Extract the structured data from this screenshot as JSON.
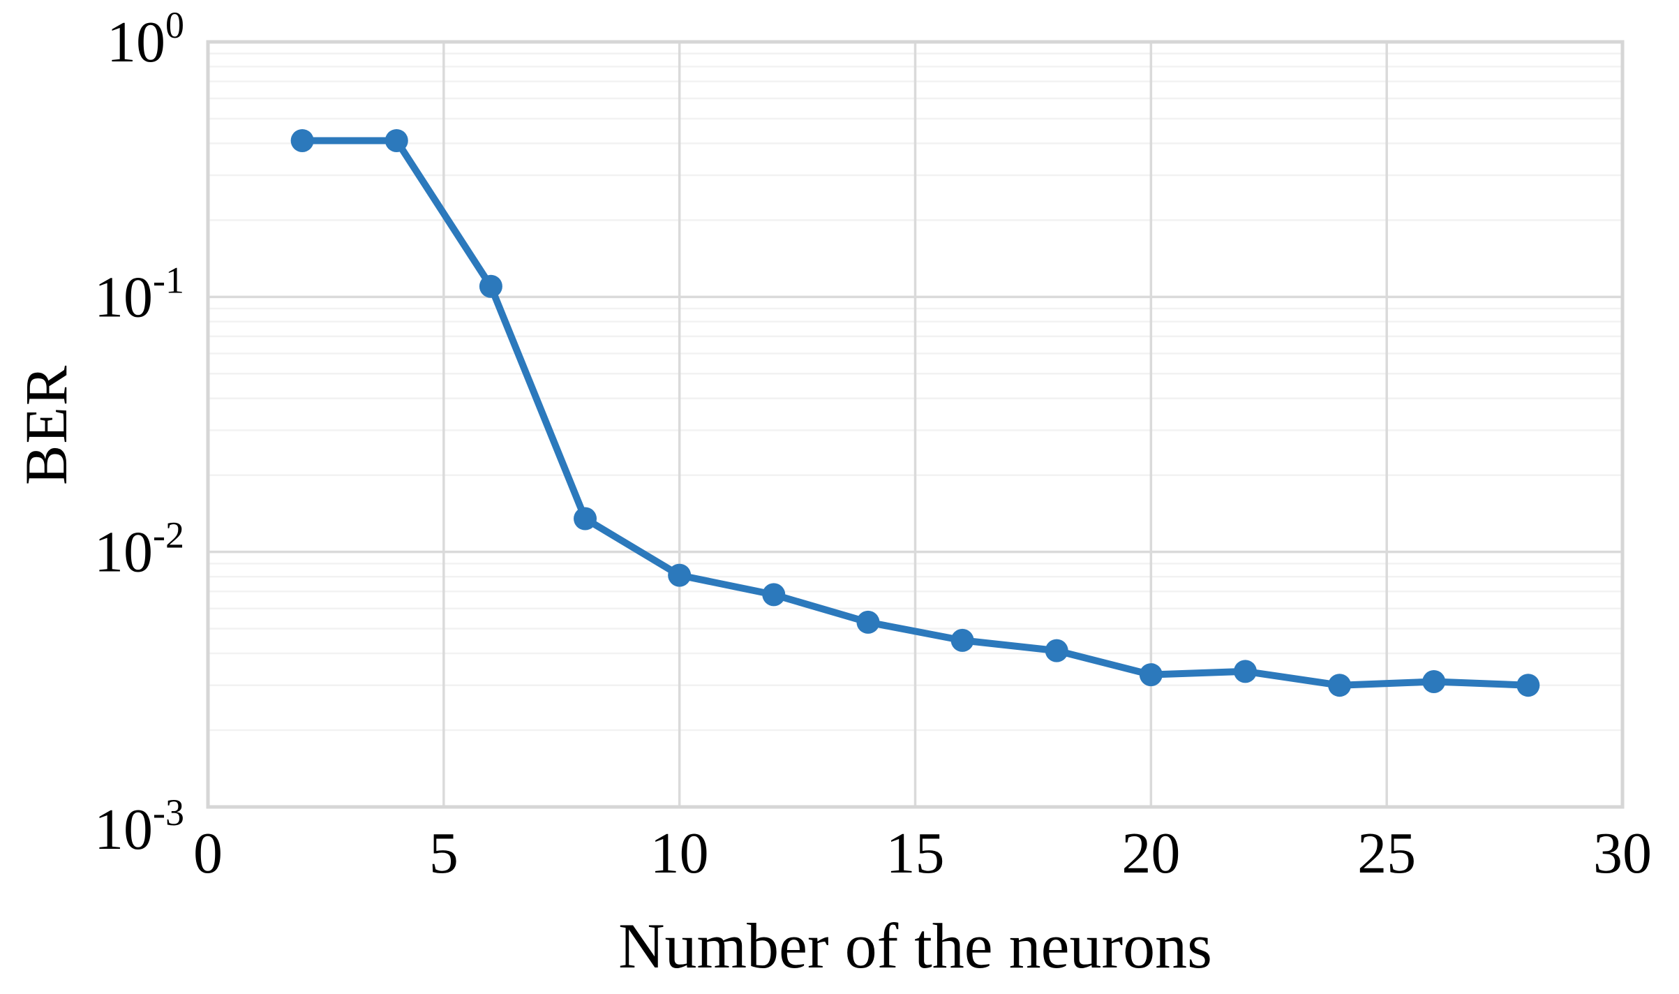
{
  "figure": {
    "background": "#ffffff"
  },
  "chart_data": {
    "type": "line",
    "title": "",
    "xlabel": "Number of the neurons",
    "ylabel": "BER",
    "x": [
      2,
      4,
      6,
      8,
      10,
      12,
      14,
      16,
      18,
      20,
      22,
      24,
      26,
      28
    ],
    "y": [
      0.41,
      0.41,
      0.11,
      0.0135,
      0.0081,
      0.0068,
      0.0053,
      0.0045,
      0.0041,
      0.0033,
      0.0034,
      0.003,
      0.0031,
      0.003
    ],
    "xlim": [
      0,
      30
    ],
    "ylim": [
      0.001,
      1
    ],
    "y_scale": "log",
    "x_ticks": [
      "0",
      "5",
      "10",
      "15",
      "20",
      "25",
      "30"
    ],
    "y_ticks": [
      {
        "base": "10",
        "exp": "0"
      },
      {
        "base": "10",
        "exp": "-1"
      },
      {
        "base": "10",
        "exp": "-2"
      },
      {
        "base": "10",
        "exp": "-3"
      }
    ],
    "grid": {
      "major": true,
      "minor": true
    },
    "legend": "none",
    "colors": {
      "series": "#2C79BC",
      "major_grid": "#DADADA",
      "minor_grid": "#F2F2F2",
      "border": "#D6D6D6",
      "text": "#000000"
    }
  }
}
